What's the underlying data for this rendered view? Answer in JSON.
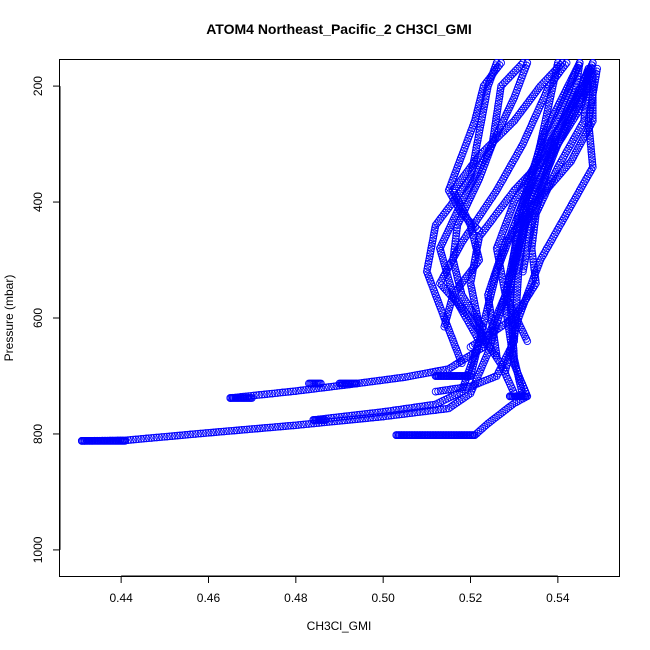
{
  "chart_data": {
    "type": "scatter",
    "title": "ATOM4 Northeast_Pacific_2 CH3Cl_GMI",
    "xlabel": "CH3Cl_GMI",
    "ylabel": "Pressure (mbar)",
    "xlim": [
      0.426,
      0.554
    ],
    "ylim": [
      1045,
      155
    ],
    "y_reversed": true,
    "x_ticks": [
      "0.44",
      "0.46",
      "0.48",
      "0.50",
      "0.52",
      "0.54"
    ],
    "y_ticks": [
      "200",
      "400",
      "600",
      "800",
      "1000"
    ],
    "grid": false,
    "legend": "none",
    "marker": "open-circle",
    "series_color": "#0000ff",
    "series": [
      {
        "path": [
          [
            0.431,
            812
          ],
          [
            0.441,
            811
          ],
          [
            0.46,
            798
          ],
          [
            0.48,
            785
          ],
          [
            0.5,
            770
          ],
          [
            0.515,
            756
          ],
          [
            0.52,
            730
          ],
          [
            0.524,
            660
          ],
          [
            0.528,
            560
          ],
          [
            0.531,
            450
          ],
          [
            0.536,
            300
          ],
          [
            0.54,
            160
          ]
        ]
      },
      {
        "path": [
          [
            0.465,
            738
          ],
          [
            0.48,
            726
          ],
          [
            0.494,
            713
          ],
          [
            0.505,
            702
          ],
          [
            0.515,
            688
          ],
          [
            0.523,
            650
          ],
          [
            0.528,
            560
          ],
          [
            0.533,
            420
          ],
          [
            0.54,
            280
          ],
          [
            0.548,
            160
          ]
        ]
      },
      {
        "path": [
          [
            0.484,
            776
          ],
          [
            0.5,
            762
          ],
          [
            0.512,
            749
          ],
          [
            0.518,
            727
          ],
          [
            0.522,
            640
          ],
          [
            0.526,
            520
          ],
          [
            0.532,
            400
          ],
          [
            0.537,
            280
          ],
          [
            0.545,
            160
          ]
        ]
      },
      {
        "path": [
          [
            0.503,
            802
          ],
          [
            0.521,
            802
          ],
          [
            0.524,
            782
          ],
          [
            0.53,
            747
          ],
          [
            0.533,
            735
          ],
          [
            0.53,
            680
          ],
          [
            0.528,
            580
          ],
          [
            0.532,
            450
          ],
          [
            0.54,
            300
          ],
          [
            0.547,
            170
          ]
        ]
      },
      {
        "path": [
          [
            0.529,
            735
          ],
          [
            0.532,
            735
          ],
          [
            0.53,
            670
          ],
          [
            0.529,
            560
          ],
          [
            0.531,
            420
          ],
          [
            0.538,
            300
          ],
          [
            0.546,
            200
          ],
          [
            0.548,
            160
          ]
        ]
      },
      {
        "path": [
          [
            0.512,
            727
          ],
          [
            0.52,
            718
          ],
          [
            0.526,
            700
          ],
          [
            0.53,
            640
          ],
          [
            0.531,
            520
          ],
          [
            0.533,
            400
          ],
          [
            0.54,
            300
          ],
          [
            0.547,
            200
          ]
        ]
      },
      {
        "path": [
          [
            0.512,
            700
          ],
          [
            0.52,
            700
          ],
          [
            0.522,
            640
          ],
          [
            0.516,
            560
          ],
          [
            0.513,
            480
          ],
          [
            0.518,
            400
          ],
          [
            0.525,
            300
          ],
          [
            0.527,
            200
          ],
          [
            0.532,
            160
          ]
        ]
      },
      {
        "path": [
          [
            0.518,
            678
          ],
          [
            0.514,
            600
          ],
          [
            0.51,
            520
          ],
          [
            0.512,
            440
          ],
          [
            0.52,
            360
          ],
          [
            0.522,
            280
          ],
          [
            0.524,
            200
          ],
          [
            0.526,
            160
          ]
        ]
      },
      {
        "path": [
          [
            0.53,
            730
          ],
          [
            0.527,
            680
          ],
          [
            0.52,
            600
          ],
          [
            0.513,
            540
          ],
          [
            0.518,
            470
          ],
          [
            0.526,
            380
          ],
          [
            0.532,
            300
          ],
          [
            0.538,
            200
          ],
          [
            0.542,
            160
          ]
        ]
      },
      {
        "path": [
          [
            0.523,
            620
          ],
          [
            0.518,
            560
          ],
          [
            0.516,
            500
          ],
          [
            0.517,
            440
          ],
          [
            0.522,
            360
          ],
          [
            0.525,
            300
          ],
          [
            0.53,
            220
          ],
          [
            0.533,
            160
          ]
        ]
      },
      {
        "path": [
          [
            0.523,
            650
          ],
          [
            0.52,
            540
          ],
          [
            0.522,
            460
          ],
          [
            0.53,
            380
          ],
          [
            0.54,
            300
          ],
          [
            0.545,
            240
          ],
          [
            0.548,
            170
          ]
        ]
      },
      {
        "path": [
          [
            0.526,
            665
          ],
          [
            0.524,
            560
          ],
          [
            0.528,
            470
          ],
          [
            0.535,
            400
          ],
          [
            0.543,
            330
          ],
          [
            0.548,
            260
          ],
          [
            0.548,
            180
          ]
        ]
      },
      {
        "path": [
          [
            0.528,
            690
          ],
          [
            0.531,
            600
          ],
          [
            0.536,
            500
          ],
          [
            0.542,
            420
          ],
          [
            0.548,
            340
          ],
          [
            0.547,
            260
          ],
          [
            0.549,
            170
          ]
        ]
      },
      {
        "path": [
          [
            0.533,
            640
          ],
          [
            0.528,
            560
          ],
          [
            0.526,
            480
          ],
          [
            0.53,
            400
          ],
          [
            0.536,
            320
          ],
          [
            0.54,
            250
          ],
          [
            0.545,
            160
          ]
        ]
      },
      {
        "path": [
          [
            0.52,
            650
          ],
          [
            0.53,
            600
          ],
          [
            0.535,
            540
          ],
          [
            0.534,
            480
          ],
          [
            0.535,
            420
          ],
          [
            0.54,
            340
          ],
          [
            0.546,
            260
          ],
          [
            0.547,
            170
          ]
        ]
      },
      {
        "path": [
          [
            0.514,
            615
          ],
          [
            0.516,
            560
          ],
          [
            0.522,
            500
          ],
          [
            0.52,
            440
          ],
          [
            0.516,
            380
          ],
          [
            0.522,
            320
          ],
          [
            0.53,
            260
          ],
          [
            0.536,
            200
          ],
          [
            0.541,
            160
          ]
        ]
      },
      {
        "path": [
          [
            0.522,
            450
          ],
          [
            0.518,
            420
          ],
          [
            0.515,
            380
          ],
          [
            0.518,
            320
          ],
          [
            0.521,
            260
          ],
          [
            0.523,
            200
          ],
          [
            0.527,
            160
          ]
        ]
      },
      {
        "path": [
          [
            0.532,
            520
          ],
          [
            0.534,
            440
          ],
          [
            0.537,
            360
          ],
          [
            0.54,
            280
          ],
          [
            0.544,
            210
          ],
          [
            0.545,
            160
          ]
        ]
      }
    ],
    "dense_segments": [
      {
        "x0": 0.431,
        "x1": 0.441,
        "y": 812
      },
      {
        "x0": 0.465,
        "x1": 0.47,
        "y": 738
      },
      {
        "x0": 0.483,
        "x1": 0.486,
        "y": 713
      },
      {
        "x0": 0.49,
        "x1": 0.494,
        "y": 713
      },
      {
        "x0": 0.484,
        "x1": 0.487,
        "y": 776
      },
      {
        "x0": 0.503,
        "x1": 0.521,
        "y": 802
      },
      {
        "x0": 0.512,
        "x1": 0.52,
        "y": 700
      },
      {
        "x0": 0.529,
        "x1": 0.533,
        "y": 735
      }
    ]
  }
}
